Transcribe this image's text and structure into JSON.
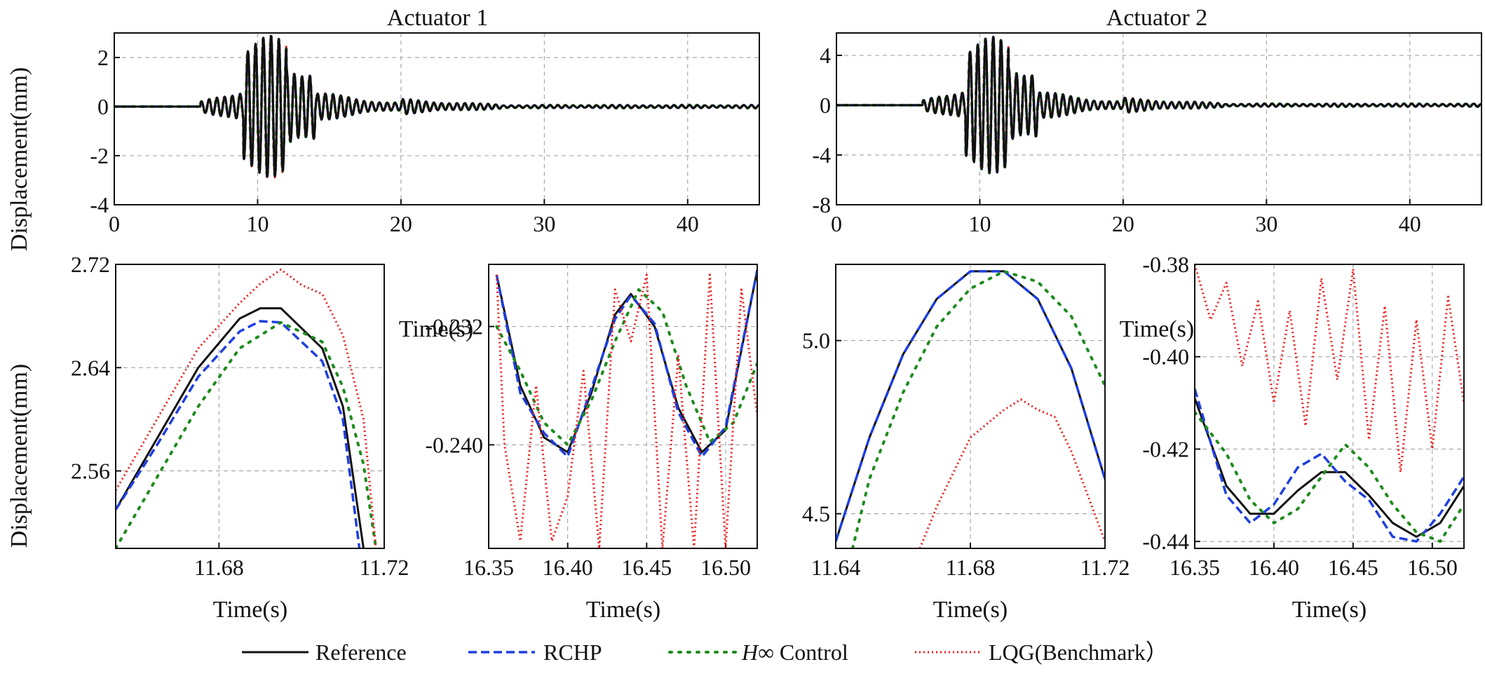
{
  "figure": {
    "panel_titles": [
      "Actuator 1",
      "Actuator 2"
    ],
    "ylabel_top": "Displacement(mm)",
    "ylabel_bottom": "Displacement(mm)",
    "xlabel": "Time(s)"
  },
  "legend": [
    {
      "label": "Reference",
      "color": "#111111",
      "style": "solid"
    },
    {
      "label": "RCHP",
      "color": "#1f3fe0",
      "style": "dashed"
    },
    {
      "label": "∞ Control",
      "italic_prefix": "H",
      "color": "#1e8c1e",
      "style": "dotted-coarse"
    },
    {
      "label": "LQG(Benchmark）",
      "color": "#ee1c1c",
      "style": "dotted"
    }
  ],
  "chart_data": [
    {
      "id": "top_left",
      "type": "line",
      "title": "Actuator 1",
      "xlabel": "Time(s)",
      "ylabel": "Displacement(mm)",
      "xlim": [
        0,
        45
      ],
      "ylim": [
        -4,
        3
      ],
      "xticks": [
        0,
        10,
        20,
        30,
        40
      ],
      "yticks": [
        -4,
        -2,
        0,
        2
      ],
      "grid": true,
      "series": [
        {
          "name": "Reference",
          "peak_max": 2.69,
          "peak_min": -3.2,
          "note_time_of_peak": 11.69
        },
        {
          "name": "RCHP",
          "peak_max": 2.68,
          "peak_min": -3.2
        },
        {
          "name": "H∞ Control",
          "peak_max": 2.68,
          "peak_min": -3.2
        },
        {
          "name": "LQG(Benchmark）",
          "peak_max": 2.72,
          "peak_min": -3.25
        }
      ]
    },
    {
      "id": "top_right",
      "type": "line",
      "title": "Actuator 2",
      "xlabel": "Time(s)",
      "ylabel": "",
      "xlim": [
        0,
        45
      ],
      "ylim": [
        -8,
        5.8
      ],
      "xticks": [
        0,
        10,
        20,
        30,
        40
      ],
      "yticks": [
        -8,
        -4,
        0,
        4
      ],
      "grid": true,
      "series": [
        {
          "name": "Reference",
          "peak_max": 5.2,
          "peak_min": -6.1
        },
        {
          "name": "RCHP",
          "peak_max": 5.2,
          "peak_min": -6.1
        },
        {
          "name": "H∞ Control",
          "peak_max": 5.2,
          "peak_min": -6.1
        },
        {
          "name": "LQG(Benchmark）",
          "peak_max": 4.85,
          "peak_min": -6.0
        }
      ]
    },
    {
      "id": "zoom_1",
      "type": "line",
      "xlabel": "Time(s)",
      "ylabel": "Displacement(mm)",
      "xlim": [
        11.655,
        11.72
      ],
      "ylim": [
        2.5,
        2.72
      ],
      "xticks": [
        11.68,
        11.72
      ],
      "yticks": [
        2.56,
        2.64,
        2.72
      ],
      "xticklabels": [
        "11.68",
        "11.72"
      ],
      "yticklabels": [
        "2.56",
        "2.64",
        "2.72"
      ],
      "grid": true,
      "series": [
        {
          "name": "Reference",
          "x": [
            11.655,
            11.665,
            11.675,
            11.685,
            11.69,
            11.695,
            11.705,
            11.71,
            11.715
          ],
          "y": [
            2.53,
            2.585,
            2.64,
            2.678,
            2.686,
            2.686,
            2.655,
            2.61,
            2.5
          ]
        },
        {
          "name": "RCHP",
          "x": [
            11.655,
            11.665,
            11.675,
            11.685,
            11.69,
            11.695,
            11.705,
            11.71,
            11.714
          ],
          "y": [
            2.53,
            2.58,
            2.633,
            2.668,
            2.676,
            2.675,
            2.645,
            2.6,
            2.5
          ]
        },
        {
          "name": "H∞ Control",
          "x": [
            11.655,
            11.665,
            11.675,
            11.685,
            11.695,
            11.705,
            11.71,
            11.715,
            11.718
          ],
          "y": [
            2.5,
            2.555,
            2.61,
            2.655,
            2.675,
            2.66,
            2.625,
            2.565,
            2.5
          ]
        },
        {
          "name": "LQG(Benchmark）",
          "x": [
            11.655,
            11.665,
            11.675,
            11.685,
            11.69,
            11.695,
            11.7,
            11.705,
            11.71,
            11.715,
            11.718
          ],
          "y": [
            2.545,
            2.6,
            2.655,
            2.69,
            2.705,
            2.716,
            2.704,
            2.697,
            2.665,
            2.6,
            2.5
          ]
        }
      ]
    },
    {
      "id": "zoom_2",
      "type": "line",
      "xlabel": "Time(s)",
      "ylabel": "",
      "xlim": [
        16.35,
        16.52
      ],
      "ylim": [
        -0.247,
        -0.2278
      ],
      "xticks": [
        16.35,
        16.4,
        16.45,
        16.5
      ],
      "yticks": [
        -0.24,
        -0.232
      ],
      "xticklabels": [
        "16.35",
        "16.40",
        "16.45",
        "16.50"
      ],
      "yticklabels": [
        "-0.240",
        "-0.232"
      ],
      "grid": true,
      "series": [
        {
          "name": "Reference",
          "x": [
            16.355,
            16.37,
            16.385,
            16.4,
            16.415,
            16.43,
            16.44,
            16.455,
            16.47,
            16.485,
            16.5,
            16.52
          ],
          "y": [
            -0.2285,
            -0.236,
            -0.2395,
            -0.2405,
            -0.2365,
            -0.2312,
            -0.2298,
            -0.232,
            -0.2375,
            -0.2405,
            -0.239,
            -0.2282
          ]
        },
        {
          "name": "RCHP",
          "x": [
            16.355,
            16.37,
            16.385,
            16.4,
            16.415,
            16.43,
            16.44,
            16.455,
            16.47,
            16.485,
            16.5,
            16.52
          ],
          "y": [
            -0.2285,
            -0.2365,
            -0.2392,
            -0.2408,
            -0.2362,
            -0.2315,
            -0.2299,
            -0.2318,
            -0.2378,
            -0.2408,
            -0.2388,
            -0.2282
          ]
        },
        {
          "name": "H∞ Control",
          "x": [
            16.355,
            16.37,
            16.385,
            16.4,
            16.415,
            16.43,
            16.445,
            16.46,
            16.475,
            16.49,
            16.505,
            16.52
          ],
          "y": [
            -0.232,
            -0.235,
            -0.2385,
            -0.24,
            -0.237,
            -0.233,
            -0.2295,
            -0.231,
            -0.236,
            -0.2398,
            -0.2385,
            -0.2345
          ]
        },
        {
          "name": "LQG(Benchmark）",
          "x": [
            16.355,
            16.36,
            16.37,
            16.38,
            16.39,
            16.4,
            16.41,
            16.42,
            16.43,
            16.44,
            16.45,
            16.46,
            16.47,
            16.48,
            16.49,
            16.5,
            16.51,
            16.52
          ],
          "y": [
            -0.2285,
            -0.24,
            -0.2465,
            -0.236,
            -0.2465,
            -0.2435,
            -0.235,
            -0.247,
            -0.2295,
            -0.233,
            -0.2285,
            -0.247,
            -0.234,
            -0.247,
            -0.2285,
            -0.247,
            -0.2295,
            -0.238
          ]
        }
      ]
    },
    {
      "id": "zoom_3",
      "type": "line",
      "xlabel": "Time(s)",
      "ylabel": "",
      "xlim": [
        11.64,
        11.72
      ],
      "ylim": [
        4.4,
        5.22
      ],
      "xticks": [
        11.64,
        11.68,
        11.72
      ],
      "yticks": [
        4.5,
        5.0
      ],
      "xticklabels": [
        "11.64",
        "11.68",
        "11.72"
      ],
      "yticklabels": [
        "4.5",
        "5.0"
      ],
      "grid": true,
      "series": [
        {
          "name": "Reference",
          "x": [
            11.64,
            11.65,
            11.66,
            11.67,
            11.68,
            11.69,
            11.7,
            11.71,
            11.72
          ],
          "y": [
            4.42,
            4.72,
            4.96,
            5.12,
            5.2,
            5.2,
            5.12,
            4.92,
            4.6
          ]
        },
        {
          "name": "RCHP",
          "x": [
            11.64,
            11.65,
            11.66,
            11.67,
            11.68,
            11.69,
            11.7,
            11.71,
            11.72
          ],
          "y": [
            4.42,
            4.72,
            4.96,
            5.12,
            5.2,
            5.2,
            5.12,
            4.92,
            4.6
          ]
        },
        {
          "name": "H∞ Control",
          "x": [
            11.645,
            11.65,
            11.66,
            11.67,
            11.68,
            11.69,
            11.7,
            11.71,
            11.72
          ],
          "y": [
            4.4,
            4.6,
            4.85,
            5.04,
            5.15,
            5.2,
            5.17,
            5.07,
            4.87
          ]
        },
        {
          "name": "LQG(Benchmark）",
          "x": [
            11.665,
            11.67,
            11.68,
            11.69,
            11.695,
            11.7,
            11.705,
            11.71,
            11.715,
            11.72
          ],
          "y": [
            4.4,
            4.52,
            4.72,
            4.8,
            4.83,
            4.8,
            4.78,
            4.68,
            4.55,
            4.42
          ]
        }
      ]
    },
    {
      "id": "zoom_4",
      "type": "line",
      "xlabel": "Time(s)",
      "ylabel": "",
      "xlim": [
        16.35,
        16.52
      ],
      "ylim": [
        -0.4415,
        -0.38
      ],
      "xticks": [
        16.35,
        16.4,
        16.45,
        16.5
      ],
      "yticks": [
        -0.44,
        -0.42,
        -0.4,
        -0.38
      ],
      "xticklabels": [
        "16.35",
        "16.40",
        "16.45",
        "16.50"
      ],
      "yticklabels": [
        "-0.44",
        "-0.42",
        "-0.40",
        "-0.38"
      ],
      "grid": true,
      "series": [
        {
          "name": "Reference",
          "x": [
            16.35,
            16.37,
            16.385,
            16.4,
            16.415,
            16.43,
            16.445,
            16.46,
            16.475,
            16.49,
            16.505,
            16.52
          ],
          "y": [
            -0.409,
            -0.428,
            -0.434,
            -0.434,
            -0.429,
            -0.425,
            -0.425,
            -0.43,
            -0.436,
            -0.439,
            -0.436,
            -0.428
          ]
        },
        {
          "name": "RCHP",
          "x": [
            16.35,
            16.37,
            16.385,
            16.4,
            16.415,
            16.43,
            16.445,
            16.46,
            16.475,
            16.49,
            16.505,
            16.52
          ],
          "y": [
            -0.407,
            -0.43,
            -0.436,
            -0.432,
            -0.424,
            -0.421,
            -0.427,
            -0.431,
            -0.439,
            -0.44,
            -0.434,
            -0.426
          ]
        },
        {
          "name": "H∞ Control",
          "x": [
            16.35,
            16.37,
            16.385,
            16.4,
            16.415,
            16.43,
            16.445,
            16.46,
            16.475,
            16.49,
            16.505,
            16.52
          ],
          "y": [
            -0.412,
            -0.421,
            -0.431,
            -0.436,
            -0.433,
            -0.426,
            -0.419,
            -0.424,
            -0.432,
            -0.438,
            -0.44,
            -0.432
          ]
        },
        {
          "name": "LQG(Benchmark）",
          "x": [
            16.35,
            16.36,
            16.37,
            16.38,
            16.39,
            16.4,
            16.41,
            16.42,
            16.43,
            16.44,
            16.45,
            16.46,
            16.47,
            16.48,
            16.49,
            16.5,
            16.51,
            16.52
          ],
          "y": [
            -0.38,
            -0.392,
            -0.384,
            -0.402,
            -0.388,
            -0.41,
            -0.39,
            -0.415,
            -0.383,
            -0.405,
            -0.381,
            -0.418,
            -0.389,
            -0.425,
            -0.392,
            -0.42,
            -0.387,
            -0.41
          ]
        }
      ]
    }
  ]
}
